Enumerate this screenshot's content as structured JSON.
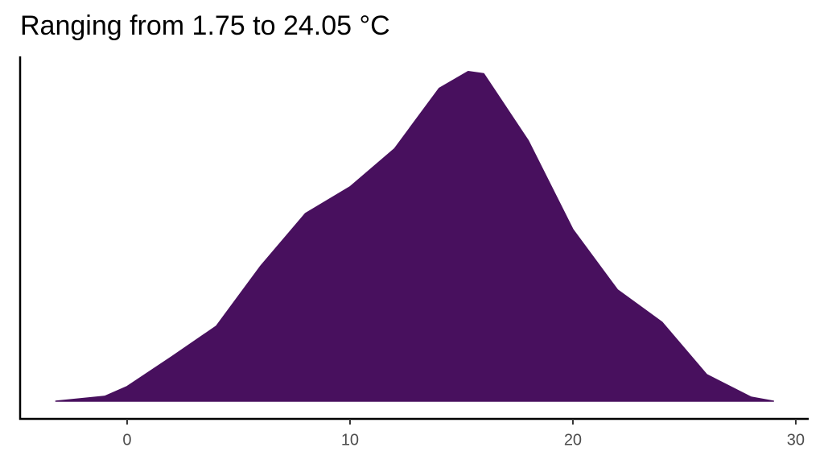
{
  "chart_data": {
    "type": "density",
    "title": "Ranging from 1.75 to 24.05 °C",
    "x": [
      -3.2,
      -1,
      0,
      2,
      4,
      6,
      8,
      10,
      12,
      14,
      15.3,
      16,
      18,
      20,
      22,
      24,
      26,
      28,
      29
    ],
    "values": [
      0,
      0.0011,
      0.0033,
      0.01,
      0.0169,
      0.0305,
      0.0423,
      0.0483,
      0.0569,
      0.0705,
      0.0743,
      0.0738,
      0.0587,
      0.0387,
      0.0251,
      0.0178,
      0.006,
      0.0009,
      0
    ],
    "color": "#48105e",
    "xlim": [
      -4.8,
      30.58
    ],
    "xticks": [
      0,
      10,
      20,
      30
    ],
    "ylim": [
      -0.004,
      0.0777
    ]
  }
}
